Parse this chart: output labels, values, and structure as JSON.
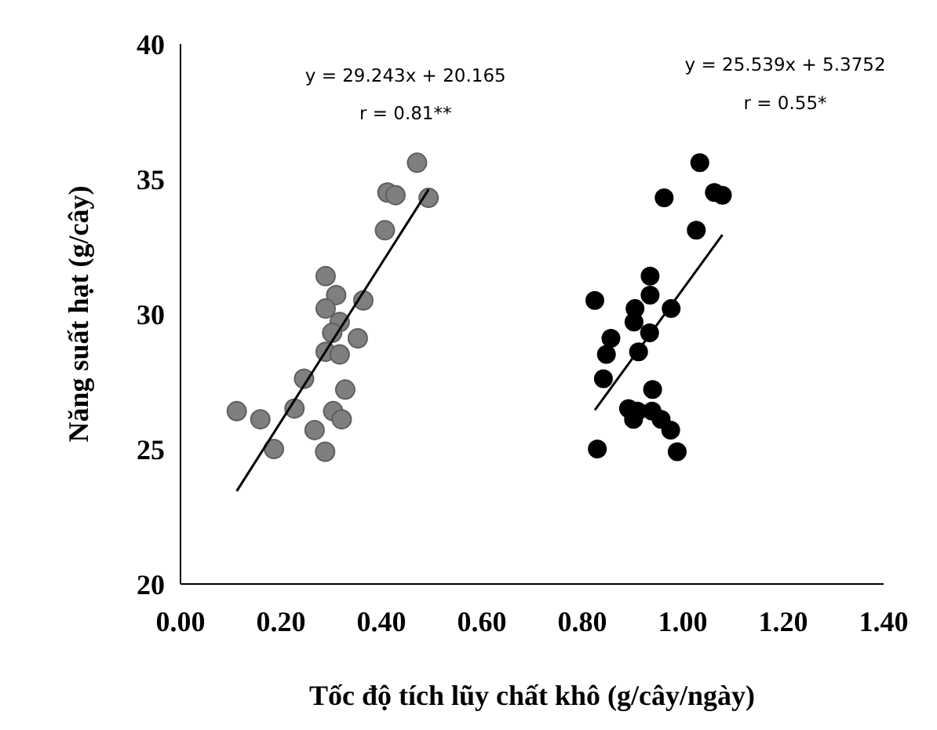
{
  "chart_data": {
    "type": "scatter",
    "xlabel": "Tốc độ tích lũy chất khô (g/cây/ngày)",
    "ylabel": "Năng suất hạt (g/cây)",
    "xlim": [
      0,
      1.4
    ],
    "xticks": [
      {
        "value": 0,
        "label": "0.00"
      },
      {
        "value": 0.2,
        "label": "0.20"
      },
      {
        "value": 0.4,
        "label": "0.40"
      },
      {
        "value": 0.6,
        "label": "0.60"
      },
      {
        "value": 0.8,
        "label": "0.80"
      },
      {
        "value": 1,
        "label": "1.00"
      },
      {
        "value": 1.2,
        "label": "1.20"
      },
      {
        "value": 1.4,
        "label": "1.40"
      }
    ],
    "ylim": [
      20,
      40
    ],
    "yticks": [
      20,
      25,
      30,
      35,
      40
    ],
    "grid": false,
    "annotations": [
      "y = 29.243x + 20.165",
      "r = 0.81**",
      "y = 25.539x + 5.3752",
      "r = 0.55*"
    ],
    "series": [
      {
        "marker": "circle",
        "color": "#7f7f7f",
        "x": [
          0.112,
          0.159,
          0.186,
          0.227,
          0.246,
          0.267,
          0.288,
          0.289,
          0.31,
          0.289,
          0.317,
          0.302,
          0.289,
          0.317,
          0.364,
          0.353,
          0.328,
          0.304,
          0.321,
          0.407,
          0.412,
          0.428,
          0.471,
          0.494
        ],
        "values": [
          26.4,
          26.1,
          25.0,
          26.5,
          27.6,
          25.7,
          24.9,
          31.4,
          30.7,
          30.2,
          29.7,
          29.3,
          28.6,
          28.5,
          30.5,
          29.1,
          27.2,
          26.4,
          26.1,
          33.1,
          34.5,
          34.4,
          35.6,
          34.3
        ]
      },
      {
        "marker": "circle",
        "color": "#000000",
        "x": [
          0.825,
          0.83,
          0.842,
          0.848,
          0.857,
          0.892,
          0.902,
          0.91,
          0.903,
          0.905,
          0.912,
          0.934,
          0.935,
          0.935,
          0.94,
          0.939,
          0.957,
          0.976,
          0.989,
          0.977,
          0.963,
          1.027,
          1.034,
          1.063,
          1.079
        ],
        "values": [
          30.5,
          25.0,
          27.6,
          28.5,
          29.1,
          26.5,
          26.1,
          26.4,
          29.7,
          30.2,
          28.6,
          29.3,
          30.7,
          31.4,
          27.2,
          26.4,
          26.1,
          25.7,
          24.9,
          30.2,
          34.3,
          33.1,
          35.6,
          34.5,
          34.4
        ]
      },
      {
        "type": "line",
        "color": "#000000",
        "marker": "none",
        "line_style": "solid",
        "x": [
          0.112,
          0.494
        ],
        "values": [
          23.44,
          34.61
        ]
      },
      {
        "type": "line",
        "color": "#000000",
        "marker": "none",
        "line_style": "solid",
        "x": [
          0.825,
          1.079
        ],
        "values": [
          26.44,
          32.93
        ]
      }
    ]
  }
}
